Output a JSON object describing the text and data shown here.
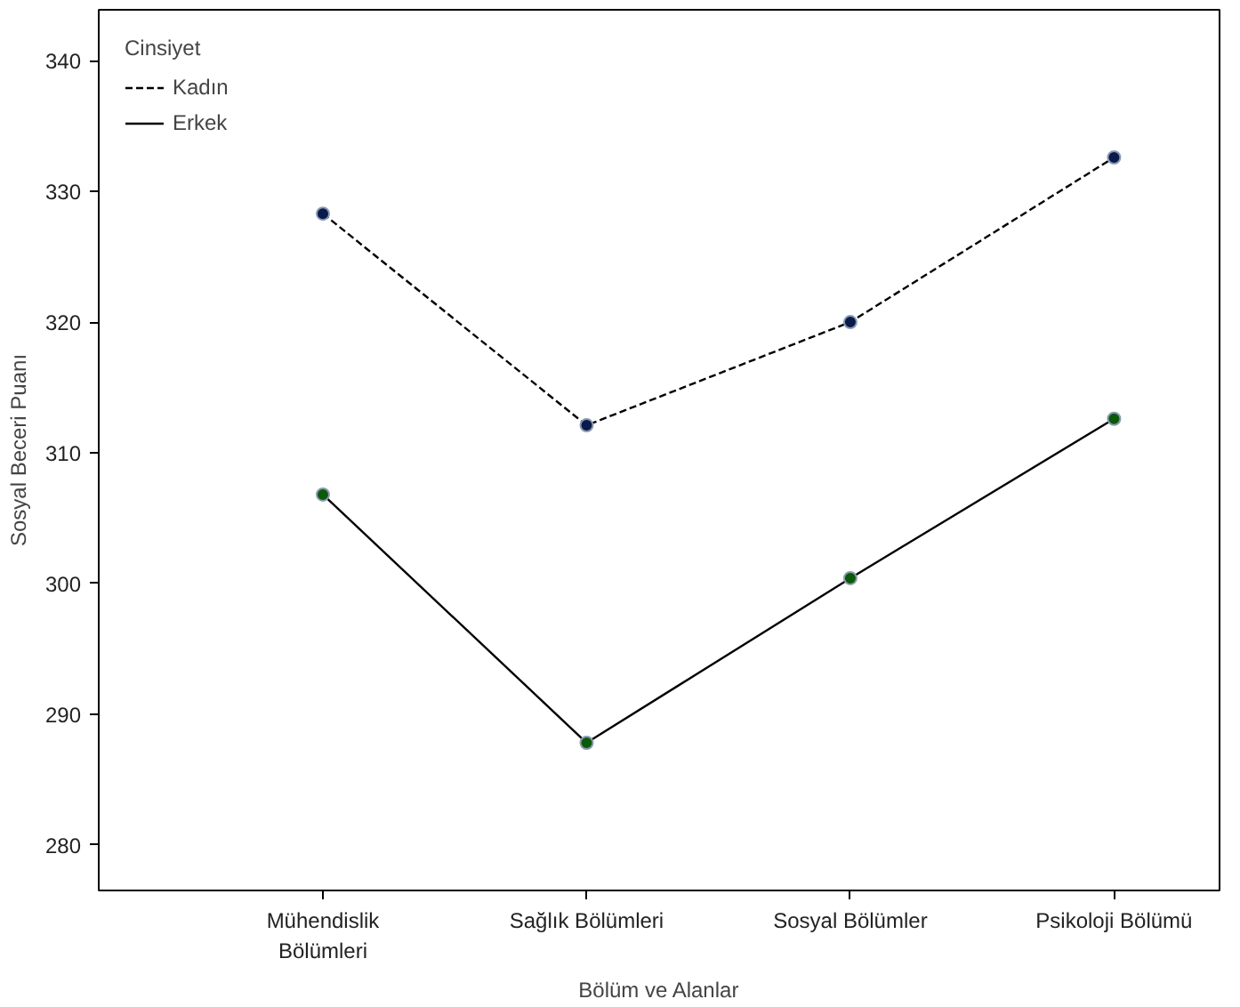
{
  "chart_data": {
    "type": "line",
    "xlabel": "Bölüm ve Alanlar",
    "ylabel": "Sosyal Beceri Puanı",
    "legend_title": "Cinsiyet",
    "categories": [
      "Mühendislik\nBölümleri",
      "Sağlık Bölümleri",
      "Sosyal Bölümler",
      "Psikoloji Bölümü"
    ],
    "series": [
      {
        "name": "Kadın",
        "color": "#000000",
        "line_style": "dashed",
        "colors": [
          "#0a1a4a",
          "#0a1a4a",
          "#0a1a4a",
          "#0a1a4a"
        ],
        "values": [
          328.3,
          312.1,
          320.0,
          332.6
        ]
      },
      {
        "name": "Erkek",
        "color": "#000000",
        "line_style": "solid",
        "colors": [
          "#0b5a0b",
          "#0b5a0b",
          "#0b5a0b",
          "#0b5a0b"
        ],
        "values": [
          306.8,
          287.8,
          300.4,
          312.6
        ]
      }
    ],
    "ylim": [
      276.5,
      343.9
    ],
    "yticks": [
      280,
      290,
      300,
      310,
      320,
      330,
      340
    ],
    "grid": false,
    "legend": "top left",
    "marker": "circle"
  }
}
